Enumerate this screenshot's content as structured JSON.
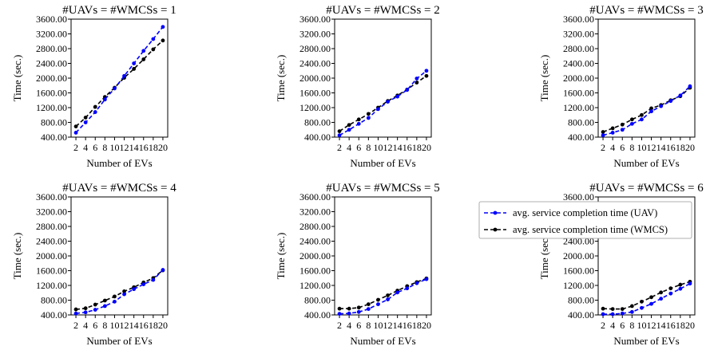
{
  "chart_data": [
    {
      "type": "line",
      "title": "#UAVs = #WMCSs = 1",
      "xlabel": "Number of EVs",
      "ylabel": "Time (sec.)",
      "x": [
        2,
        4,
        6,
        8,
        10,
        12,
        14,
        16,
        18,
        20
      ],
      "ylim": [
        400,
        3600
      ],
      "yticks": [
        "400.00",
        "800.00",
        "1200.00",
        "1600.00",
        "2000.00",
        "2400.00",
        "2800.00",
        "3200.00",
        "3600.00"
      ],
      "xticks": [
        "2",
        "4",
        "6",
        "8",
        "10",
        "12",
        "14",
        "16",
        "18",
        "20"
      ],
      "series": [
        {
          "name": "avg. service completion time (UAV)",
          "color": "#0000ff",
          "values": [
            520,
            800,
            1080,
            1420,
            1720,
            2060,
            2400,
            2740,
            3060,
            3390
          ]
        },
        {
          "name": "avg. service completion time (WMCS)",
          "color": "#000000",
          "values": [
            690,
            930,
            1220,
            1490,
            1740,
            2010,
            2250,
            2510,
            2780,
            3020
          ]
        }
      ]
    },
    {
      "type": "line",
      "title": "#UAVs = #WMCSs = 2",
      "xlabel": "Number of EVs",
      "ylabel": "Time (sec.)",
      "x": [
        2,
        4,
        6,
        8,
        10,
        12,
        14,
        16,
        18,
        20
      ],
      "ylim": [
        400,
        3600
      ],
      "yticks": [
        "400.00",
        "800.00",
        "1200.00",
        "1600.00",
        "2000.00",
        "2400.00",
        "2800.00",
        "3200.00",
        "3600.00"
      ],
      "xticks": [
        "2",
        "4",
        "6",
        "8",
        "10",
        "12",
        "14",
        "16",
        "18",
        "20"
      ],
      "series": [
        {
          "name": "avg. service completion time (UAV)",
          "color": "#0000ff",
          "values": [
            450,
            600,
            760,
            920,
            1160,
            1360,
            1500,
            1680,
            1990,
            2200
          ]
        },
        {
          "name": "avg. service completion time (WMCS)",
          "color": "#000000",
          "values": [
            560,
            730,
            880,
            1030,
            1200,
            1380,
            1530,
            1690,
            1880,
            2060
          ]
        }
      ]
    },
    {
      "type": "line",
      "title": "#UAVs = #WMCSs = 3",
      "xlabel": "Number of EVs",
      "ylabel": "Time (sec.)",
      "x": [
        2,
        4,
        6,
        8,
        10,
        12,
        14,
        16,
        18,
        20
      ],
      "ylim": [
        400,
        3600
      ],
      "yticks": [
        "400.00",
        "800.00",
        "1200.00",
        "1600.00",
        "2000.00",
        "2400.00",
        "2800.00",
        "3200.00",
        "3600.00"
      ],
      "xticks": [
        "2",
        "4",
        "6",
        "8",
        "10",
        "12",
        "14",
        "16",
        "18",
        "20"
      ],
      "series": [
        {
          "name": "avg. service completion time (UAV)",
          "color": "#0000ff",
          "values": [
            450,
            520,
            600,
            760,
            880,
            1100,
            1240,
            1380,
            1530,
            1780
          ]
        },
        {
          "name": "avg. service completion time (WMCS)",
          "color": "#000000",
          "values": [
            540,
            640,
            740,
            880,
            1000,
            1180,
            1270,
            1400,
            1510,
            1740
          ]
        }
      ]
    },
    {
      "type": "line",
      "title": "#UAVs = #WMCSs = 4",
      "xlabel": "Number of EVs",
      "ylabel": "Time (sec.)",
      "x": [
        2,
        4,
        6,
        8,
        10,
        12,
        14,
        16,
        18,
        20
      ],
      "ylim": [
        400,
        3600
      ],
      "yticks": [
        "400.00",
        "800.00",
        "1200.00",
        "1600.00",
        "2000.00",
        "2400.00",
        "2800.00",
        "3200.00",
        "3600.00"
      ],
      "xticks": [
        "2",
        "4",
        "6",
        "8",
        "10",
        "12",
        "14",
        "16",
        "18",
        "20"
      ],
      "series": [
        {
          "name": "avg. service completion time (UAV)",
          "color": "#0000ff",
          "values": [
            440,
            470,
            540,
            640,
            760,
            960,
            1100,
            1230,
            1350,
            1620
          ]
        },
        {
          "name": "avg. service completion time (WMCS)",
          "color": "#000000",
          "values": [
            550,
            580,
            680,
            790,
            900,
            1040,
            1150,
            1280,
            1400,
            1610
          ]
        }
      ]
    },
    {
      "type": "line",
      "title": "#UAVs = #WMCSs = 5",
      "xlabel": "Number of EVs",
      "ylabel": "Time (sec.)",
      "x": [
        2,
        4,
        6,
        8,
        10,
        12,
        14,
        16,
        18,
        20
      ],
      "ylim": [
        400,
        3600
      ],
      "yticks": [
        "400.00",
        "800.00",
        "1200.00",
        "1600.00",
        "2000.00",
        "2400.00",
        "2800.00",
        "3200.00",
        "3600.00"
      ],
      "xticks": [
        "2",
        "4",
        "6",
        "8",
        "10",
        "12",
        "14",
        "16",
        "18",
        "20"
      ],
      "series": [
        {
          "name": "avg. service completion time (UAV)",
          "color": "#0000ff",
          "values": [
            430,
            440,
            480,
            560,
            690,
            820,
            1010,
            1120,
            1260,
            1370
          ]
        },
        {
          "name": "avg. service completion time (WMCS)",
          "color": "#000000",
          "values": [
            570,
            570,
            600,
            690,
            810,
            930,
            1060,
            1180,
            1290,
            1390
          ]
        }
      ]
    },
    {
      "type": "line",
      "title": "#UAVs = #WMCSs = 6",
      "xlabel": "Number of EVs",
      "ylabel": "Time (sec.)",
      "x": [
        2,
        4,
        6,
        8,
        10,
        12,
        14,
        16,
        18,
        20
      ],
      "ylim": [
        400,
        3600
      ],
      "yticks": [
        "400.00",
        "800.00",
        "1200.00",
        "1600.00",
        "2000.00",
        "2400.00",
        "2800.00",
        "3200.00",
        "3600.00"
      ],
      "xticks": [
        "2",
        "4",
        "6",
        "8",
        "10",
        "12",
        "14",
        "16",
        "18",
        "20"
      ],
      "series": [
        {
          "name": "avg. service completion time (UAV)",
          "color": "#0000ff",
          "values": [
            420,
            420,
            440,
            480,
            590,
            700,
            840,
            980,
            1110,
            1250
          ]
        },
        {
          "name": "avg. service completion time (WMCS)",
          "color": "#000000",
          "values": [
            570,
            560,
            560,
            640,
            760,
            880,
            1010,
            1120,
            1220,
            1300
          ]
        }
      ]
    }
  ],
  "legend": {
    "placement": "over-bottom-right-panel",
    "entries": [
      {
        "label": "avg. service completion time (UAV)",
        "color": "#0000ff"
      },
      {
        "label": "avg. service completion time (WMCS)",
        "color": "#000000"
      }
    ]
  }
}
